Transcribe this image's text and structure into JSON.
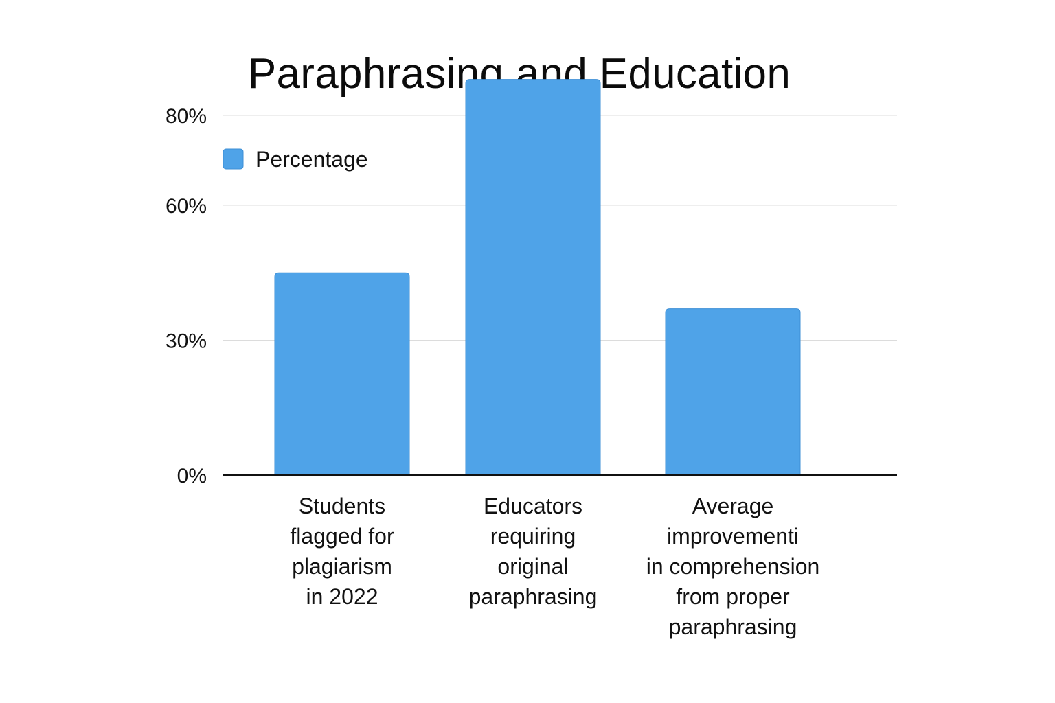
{
  "chart_data": {
    "type": "bar",
    "title": "Paraphrasing and Education",
    "xlabel": "",
    "ylabel": "",
    "categories": [
      [
        "Students",
        "flagged for",
        "plagiarism",
        "in 2022"
      ],
      [
        "Educators",
        "requiring",
        "original",
        "paraphrasing"
      ],
      [
        "Average",
        "improvementi",
        "in comprehension",
        "from proper",
        "paraphrasing"
      ]
    ],
    "series": [
      {
        "name": "Percentage",
        "color": "#4fa3e8",
        "values": [
          45,
          88,
          37
        ]
      }
    ],
    "yticks": [
      {
        "value": 0,
        "label": "0%"
      },
      {
        "value": 30,
        "label": "30%"
      },
      {
        "value": 60,
        "label": "60%"
      },
      {
        "value": 80,
        "label": "80%"
      }
    ],
    "ylim": [
      0,
      90
    ],
    "grid": true,
    "legend_position": "top-left"
  }
}
